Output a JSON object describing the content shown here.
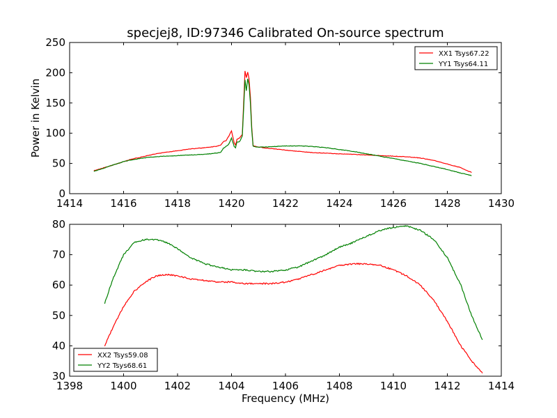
{
  "chart_data": [
    {
      "type": "line",
      "title": "specjej8, ID:97346 Calibrated On-source spectrum",
      "xlabel": "",
      "ylabel": "Power in Kelvin",
      "xlim": [
        1414,
        1430
      ],
      "ylim": [
        0,
        250
      ],
      "xticks": [
        "1414",
        "1416",
        "1418",
        "1420",
        "1422",
        "1424",
        "1426",
        "1428",
        "1430"
      ],
      "yticks": [
        "0",
        "50",
        "100",
        "150",
        "200",
        "250"
      ],
      "grid": false,
      "legend_position": "top-right",
      "series": [
        {
          "name": "XX1 Tsys67.22",
          "color": "#ff0000",
          "x": [
            1414.9,
            1415.2,
            1415.5,
            1415.8,
            1416.0,
            1416.3,
            1416.6,
            1416.9,
            1417.2,
            1417.5,
            1418.0,
            1418.5,
            1419.0,
            1419.4,
            1419.6,
            1419.7,
            1419.8,
            1419.9,
            1420.0,
            1420.1,
            1420.15,
            1420.2,
            1420.3,
            1420.4,
            1420.45,
            1420.5,
            1420.55,
            1420.6,
            1420.65,
            1420.7,
            1420.75,
            1420.8,
            1420.9,
            1421.2,
            1421.6,
            1422.0,
            1422.5,
            1423.0,
            1423.5,
            1424.0,
            1424.5,
            1425.0,
            1425.5,
            1426.0,
            1426.5,
            1427.0,
            1427.5,
            1428.0,
            1428.5,
            1428.9
          ],
          "y": [
            38,
            42,
            46,
            50,
            53,
            57,
            60,
            63,
            66,
            68,
            71,
            74,
            76,
            78,
            80,
            86,
            88,
            95,
            104,
            84,
            80,
            90,
            92,
            98,
            150,
            203,
            192,
            201,
            190,
            160,
            110,
            80,
            78,
            76,
            74,
            72,
            70,
            68,
            67,
            66,
            65,
            64,
            63,
            62,
            61,
            59,
            55,
            49,
            43,
            35
          ]
        },
        {
          "name": "YY1 Tsys64.11",
          "color": "#008000",
          "x": [
            1414.9,
            1415.2,
            1415.5,
            1415.8,
            1416.0,
            1416.3,
            1416.6,
            1416.9,
            1417.2,
            1417.5,
            1418.0,
            1418.5,
            1419.0,
            1419.4,
            1419.6,
            1419.7,
            1419.8,
            1419.9,
            1420.0,
            1420.1,
            1420.15,
            1420.2,
            1420.3,
            1420.4,
            1420.45,
            1420.5,
            1420.55,
            1420.6,
            1420.65,
            1420.7,
            1420.75,
            1420.8,
            1420.9,
            1421.2,
            1421.6,
            1422.0,
            1422.5,
            1423.0,
            1423.5,
            1424.0,
            1424.5,
            1425.0,
            1425.5,
            1426.0,
            1426.5,
            1427.0,
            1427.5,
            1428.0,
            1428.5,
            1428.9
          ],
          "y": [
            37,
            41,
            46,
            50,
            53,
            56,
            58,
            60,
            61,
            62,
            63,
            64,
            65,
            67,
            68,
            75,
            78,
            82,
            92,
            78,
            76,
            85,
            86,
            95,
            140,
            188,
            170,
            190,
            180,
            150,
            105,
            79,
            77,
            77,
            78,
            79,
            79,
            78,
            76,
            73,
            70,
            66,
            62,
            58,
            54,
            50,
            45,
            40,
            34,
            30
          ]
        }
      ]
    },
    {
      "type": "line",
      "title": "",
      "xlabel": "Frequency (MHz)",
      "ylabel": "",
      "xlim": [
        1398,
        1414
      ],
      "ylim": [
        30,
        80
      ],
      "xticks": [
        "1398",
        "1400",
        "1402",
        "1404",
        "1406",
        "1408",
        "1410",
        "1412",
        "1414"
      ],
      "yticks": [
        "30",
        "40",
        "50",
        "60",
        "70",
        "80"
      ],
      "grid": false,
      "legend_position": "bottom-left",
      "series": [
        {
          "name": "XX2 Tsys59.08",
          "color": "#ff0000",
          "x": [
            1399.3,
            1399.6,
            1400.0,
            1400.4,
            1400.8,
            1401.2,
            1401.6,
            1402.0,
            1402.5,
            1403.0,
            1403.5,
            1404.0,
            1404.5,
            1405.0,
            1405.5,
            1406.0,
            1406.5,
            1407.0,
            1407.5,
            1408.0,
            1408.5,
            1409.0,
            1409.5,
            1410.0,
            1410.5,
            1411.0,
            1411.5,
            1412.0,
            1412.5,
            1412.9,
            1413.3
          ],
          "y": [
            40,
            46,
            53,
            58,
            61,
            63,
            63.5,
            63,
            62,
            61.5,
            61,
            61,
            60.5,
            60.5,
            60.5,
            61,
            62,
            63.5,
            65,
            66.5,
            67,
            67,
            66.5,
            65,
            63,
            60,
            55,
            48,
            40,
            35,
            31
          ]
        },
        {
          "name": "YY2 Tsys68.61",
          "color": "#008000",
          "x": [
            1399.3,
            1399.6,
            1400.0,
            1400.4,
            1400.8,
            1401.2,
            1401.6,
            1402.0,
            1402.5,
            1403.0,
            1403.5,
            1404.0,
            1404.5,
            1405.0,
            1405.5,
            1406.0,
            1406.5,
            1407.0,
            1407.5,
            1408.0,
            1408.5,
            1409.0,
            1409.5,
            1410.0,
            1410.5,
            1411.0,
            1411.5,
            1412.0,
            1412.5,
            1412.9,
            1413.3
          ],
          "y": [
            54,
            62,
            70,
            74,
            75,
            75,
            74,
            72,
            69,
            67,
            66,
            65,
            65,
            64.5,
            64.5,
            65,
            66,
            68,
            70,
            72.5,
            74,
            76,
            78,
            79,
            79.5,
            78,
            75,
            69,
            60,
            50,
            42
          ]
        }
      ]
    }
  ]
}
